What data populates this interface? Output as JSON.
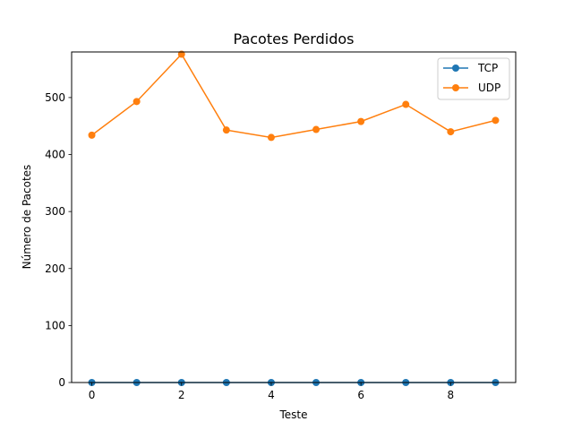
{
  "chart_data": {
    "type": "line",
    "title": "Pacotes Perdidos",
    "xlabel": "Teste",
    "ylabel": "Número de Pacotes",
    "x": [
      0,
      1,
      2,
      3,
      4,
      5,
      6,
      7,
      8,
      9
    ],
    "xlim": [
      -0.45,
      9.45
    ],
    "ylim": [
      0,
      580
    ],
    "xticks": [
      0,
      2,
      4,
      6,
      8
    ],
    "yticks": [
      0,
      100,
      200,
      300,
      400,
      500
    ],
    "grid": false,
    "legend_position": "top-right",
    "series": [
      {
        "name": "TCP",
        "color": "#1f77b4",
        "values": [
          0,
          0,
          0,
          0,
          0,
          0,
          0,
          0,
          0,
          0
        ]
      },
      {
        "name": "UDP",
        "color": "#ff7f0e",
        "values": [
          434,
          493,
          576,
          443,
          430,
          444,
          458,
          488,
          440,
          460
        ]
      }
    ]
  }
}
